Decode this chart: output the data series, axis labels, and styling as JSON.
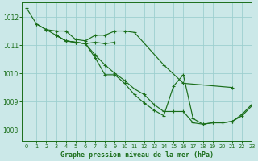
{
  "bg_color": "#cbe8e8",
  "grid_color": "#9dcfcf",
  "line_color": "#1a6e1a",
  "title": "Graphe pression niveau de la mer (hPa)",
  "xlim": [
    -0.5,
    23
  ],
  "ylim": [
    1007.6,
    1012.5
  ],
  "yticks": [
    1008,
    1009,
    1010,
    1011,
    1012
  ],
  "xticks": [
    0,
    1,
    2,
    3,
    4,
    5,
    6,
    7,
    8,
    9,
    10,
    11,
    12,
    13,
    14,
    15,
    16,
    17,
    18,
    19,
    20,
    21,
    22,
    23
  ],
  "series": [
    {
      "x": [
        0,
        1,
        2,
        3,
        4,
        5,
        6,
        7,
        8,
        9,
        10,
        11,
        14,
        16,
        21
      ],
      "y": [
        1012.3,
        1011.75,
        1011.55,
        1011.5,
        1011.5,
        1011.2,
        1011.15,
        1011.35,
        1011.35,
        1011.5,
        1011.5,
        1011.45,
        1010.3,
        1009.65,
        1009.5
      ]
    },
    {
      "x": [
        1,
        2,
        3,
        4,
        5,
        6,
        7,
        8,
        9
      ],
      "y": [
        1011.75,
        1011.55,
        1011.35,
        1011.15,
        1011.1,
        1011.05,
        1011.1,
        1011.05,
        1011.1
      ]
    },
    {
      "x": [
        3,
        4,
        5,
        6,
        7,
        8,
        9,
        10,
        11,
        12,
        13,
        14,
        15,
        16,
        17,
        18,
        19,
        20,
        21,
        22,
        23
      ],
      "y": [
        1011.35,
        1011.15,
        1011.1,
        1011.05,
        1010.65,
        1010.3,
        1010.0,
        1009.75,
        1009.45,
        1009.25,
        1008.9,
        1008.65,
        1008.65,
        1008.65,
        1008.25,
        1008.2,
        1008.25,
        1008.25,
        1008.3,
        1008.5,
        1008.85
      ]
    },
    {
      "x": [
        3,
        4,
        5,
        6,
        7,
        8,
        9,
        10,
        11,
        12,
        13,
        14,
        15,
        16,
        17,
        18,
        19,
        20,
        21,
        22,
        23
      ],
      "y": [
        1011.35,
        1011.15,
        1011.1,
        1011.05,
        1010.55,
        1009.95,
        1009.95,
        1009.65,
        1009.25,
        1008.95,
        1008.7,
        1008.5,
        1009.55,
        1009.95,
        1008.4,
        1008.2,
        1008.25,
        1008.25,
        1008.3,
        1008.55,
        1008.9
      ]
    }
  ]
}
